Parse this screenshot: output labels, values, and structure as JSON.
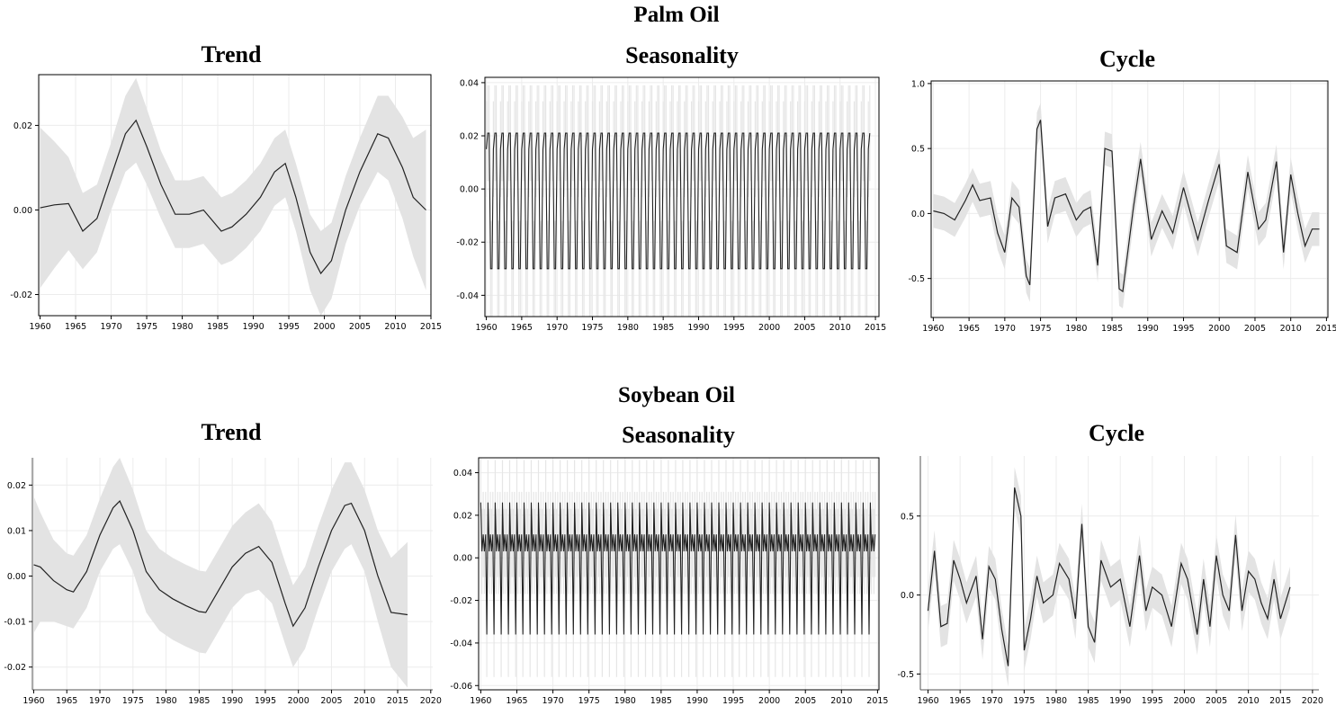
{
  "sections": [
    {
      "title": "Palm Oil"
    },
    {
      "title": "Soybean Oil"
    }
  ],
  "chart_data": [
    {
      "name": "palm-trend",
      "type": "area",
      "title": "Trend",
      "xlim": [
        1959.8,
        2015.0
      ],
      "ylim": [
        -0.025,
        0.032
      ],
      "xticks": [
        1960,
        1965,
        1970,
        1975,
        1980,
        1985,
        1990,
        1995,
        2000,
        2005,
        2010,
        2015
      ],
      "yticks": [
        -0.02,
        0.0,
        0.02
      ],
      "ytick_labels": [
        "-0.02",
        "0.00",
        "0.02"
      ],
      "x": [
        1960,
        1962,
        1964,
        1966,
        1968,
        1970,
        1972,
        1973.5,
        1975,
        1977,
        1979,
        1981,
        1983,
        1984,
        1985.5,
        1987,
        1989,
        1991,
        1993,
        1994.5,
        1996,
        1998,
        1999.5,
        2001,
        2003,
        2005,
        2007.5,
        2009,
        2011,
        2012.5,
        2014.3
      ],
      "y": [
        0.0005,
        0.0012,
        0.0015,
        -0.005,
        -0.002,
        0.008,
        0.018,
        0.0212,
        0.015,
        0.006,
        -0.001,
        -0.001,
        0.0,
        -0.002,
        -0.005,
        -0.004,
        -0.001,
        0.003,
        0.009,
        0.011,
        0.003,
        -0.01,
        -0.015,
        -0.012,
        0.0,
        0.009,
        0.018,
        0.017,
        0.01,
        0.003,
        0.0
      ],
      "band_half_width": [
        0.019,
        0.015,
        0.011,
        0.009,
        0.008,
        0.008,
        0.009,
        0.01,
        0.009,
        0.008,
        0.008,
        0.008,
        0.008,
        0.008,
        0.008,
        0.008,
        0.008,
        0.008,
        0.008,
        0.008,
        0.008,
        0.009,
        0.01,
        0.009,
        0.008,
        0.008,
        0.009,
        0.01,
        0.012,
        0.014,
        0.019
      ],
      "grid": true
    },
    {
      "name": "palm-seasonality",
      "type": "line",
      "title": "Seasonality",
      "xlim": [
        1959.8,
        2015.5
      ],
      "ylim": [
        -0.048,
        0.042
      ],
      "xticks": [
        1960,
        1965,
        1970,
        1975,
        1980,
        1985,
        1990,
        1995,
        2000,
        2005,
        2010,
        2015
      ],
      "yticks": [
        -0.04,
        -0.02,
        0.0,
        0.02,
        0.04
      ],
      "ytick_labels": [
        "-0.04",
        "-0.02",
        "0.00",
        "0.02",
        "0.04"
      ],
      "x_start": 1960,
      "x_end": 2014.3,
      "period_years": 1,
      "cycle_values": [
        0.015,
        0.021,
        0.021,
        -0.03,
        -0.03
      ],
      "band_half_width": 0.018,
      "grid": true
    },
    {
      "name": "palm-cycle",
      "type": "line",
      "title": "Cycle",
      "xlim": [
        1959.7,
        2015.2
      ],
      "ylim": [
        -0.8,
        1.02
      ],
      "xticks": [
        1960,
        1965,
        1970,
        1975,
        1980,
        1985,
        1990,
        1995,
        2000,
        2005,
        2010,
        2015
      ],
      "yticks": [
        -0.5,
        0.0,
        0.5,
        1.0
      ],
      "ytick_labels": [
        "-0.5",
        "0.0",
        "0.5",
        "1.0"
      ],
      "x": [
        1960,
        1961.5,
        1963,
        1964.5,
        1965.5,
        1966.5,
        1968,
        1969,
        1970,
        1971,
        1972,
        1973,
        1973.5,
        1974.5,
        1975,
        1976,
        1977,
        1978.5,
        1980,
        1981,
        1982,
        1983,
        1984,
        1985,
        1986,
        1986.5,
        1988,
        1989,
        1990.5,
        1992,
        1993.5,
        1995,
        1996,
        1997,
        1998.5,
        2000,
        2001,
        2002.5,
        2004,
        2005.5,
        2006.5,
        2008,
        2009,
        2010,
        2011,
        2012,
        2013,
        2014
      ],
      "y": [
        0.02,
        0.0,
        -0.05,
        0.1,
        0.22,
        0.1,
        0.12,
        -0.15,
        -0.3,
        0.12,
        0.05,
        -0.48,
        -0.55,
        0.65,
        0.72,
        -0.1,
        0.12,
        0.15,
        -0.05,
        0.02,
        0.05,
        -0.4,
        0.5,
        0.48,
        -0.58,
        -0.6,
        0.05,
        0.42,
        -0.2,
        0.02,
        -0.15,
        0.2,
        0.0,
        -0.2,
        0.1,
        0.38,
        -0.25,
        -0.3,
        0.32,
        -0.12,
        -0.05,
        0.4,
        -0.3,
        0.3,
        0.0,
        -0.25,
        -0.12,
        -0.12
      ],
      "band_half_width": 0.13,
      "grid": true
    },
    {
      "name": "soy-trend",
      "type": "area",
      "title": "Trend",
      "xlim": [
        1959.8,
        2020.3
      ],
      "ylim": [
        -0.025,
        0.026
      ],
      "xticks": [
        1960,
        1965,
        1970,
        1975,
        1980,
        1985,
        1990,
        1995,
        2000,
        2005,
        2010,
        2015,
        2020
      ],
      "yticks": [
        -0.02,
        -0.01,
        0.0,
        0.01,
        0.02
      ],
      "ytick_labels": [
        "-0.02",
        "-0.01",
        "0.00",
        "0.01",
        "0.02"
      ],
      "x": [
        1960,
        1961,
        1963,
        1965,
        1966,
        1968,
        1970,
        1972,
        1973,
        1975,
        1977,
        1979,
        1981,
        1983,
        1985,
        1986,
        1988,
        1990,
        1992,
        1994,
        1996,
        1998,
        1999.2,
        2001,
        2003,
        2005,
        2007,
        2008,
        2010,
        2012,
        2014,
        2016.5
      ],
      "y": [
        0.0025,
        0.002,
        -0.001,
        -0.003,
        -0.0035,
        0.001,
        0.009,
        0.015,
        0.0165,
        0.01,
        0.001,
        -0.003,
        -0.005,
        -0.0065,
        -0.0078,
        -0.008,
        -0.003,
        0.002,
        0.005,
        0.0065,
        0.003,
        -0.006,
        -0.011,
        -0.007,
        0.002,
        0.01,
        0.0155,
        0.016,
        0.01,
        0.0,
        -0.008,
        -0.0085
      ],
      "band_half_width": [
        0.015,
        0.012,
        0.009,
        0.008,
        0.008,
        0.008,
        0.008,
        0.009,
        0.0095,
        0.009,
        0.009,
        0.009,
        0.009,
        0.009,
        0.009,
        0.009,
        0.009,
        0.009,
        0.009,
        0.0095,
        0.009,
        0.009,
        0.009,
        0.009,
        0.009,
        0.009,
        0.0095,
        0.009,
        0.009,
        0.01,
        0.012,
        0.016
      ],
      "grid": true
    },
    {
      "name": "soy-seasonality",
      "type": "line",
      "title": "Seasonality",
      "xlim": [
        1959.7,
        2015.2
      ],
      "ylim": [
        -0.062,
        0.047
      ],
      "xticks": [
        1960,
        1965,
        1970,
        1975,
        1980,
        1985,
        1990,
        1995,
        2000,
        2005,
        2010,
        2015
      ],
      "yticks": [
        -0.06,
        -0.04,
        -0.02,
        0.0,
        0.02,
        0.04
      ],
      "ytick_labels": [
        "-0.06",
        "-0.04",
        "-0.02",
        "0.00",
        "0.02",
        "0.04"
      ],
      "x_start": 1960,
      "x_end": 2014.8,
      "period_years": 1,
      "cycle_values": [
        0.026,
        0.003,
        0.011,
        0.003,
        0.011,
        -0.036
      ],
      "band_half_width": 0.02,
      "grid": true
    },
    {
      "name": "soy-cycle",
      "type": "line",
      "title": "Cycle",
      "xlim": [
        1958.8,
        2021.0
      ],
      "ylim": [
        -0.6,
        0.88
      ],
      "xticks": [
        1960,
        1965,
        1970,
        1975,
        1980,
        1985,
        1990,
        1995,
        2000,
        2005,
        2010,
        2015,
        2020
      ],
      "yticks": [
        -0.5,
        0.0,
        0.5
      ],
      "ytick_labels": [
        "-0.5",
        "0.0",
        "0.5"
      ],
      "x": [
        1960,
        1961,
        1962,
        1963,
        1964,
        1965,
        1966,
        1967.5,
        1968.5,
        1969.5,
        1970.5,
        1971.5,
        1972.5,
        1973.5,
        1974.5,
        1975,
        1976,
        1977,
        1978,
        1979.5,
        1980.5,
        1982,
        1983,
        1984,
        1985,
        1986,
        1987,
        1988.5,
        1990,
        1991.5,
        1993,
        1994,
        1995,
        1996.5,
        1998,
        1999.5,
        2000.5,
        2002,
        2003,
        2004,
        2005,
        2006,
        2007,
        2008,
        2009,
        2010,
        2011,
        2012,
        2013,
        2014,
        2015,
        2016.5
      ],
      "y": [
        -0.1,
        0.28,
        -0.2,
        -0.18,
        0.22,
        0.1,
        -0.05,
        0.12,
        -0.28,
        0.18,
        0.1,
        -0.22,
        -0.45,
        0.68,
        0.5,
        -0.35,
        -0.15,
        0.12,
        -0.05,
        0.0,
        0.2,
        0.1,
        -0.15,
        0.45,
        -0.2,
        -0.3,
        0.22,
        0.05,
        0.1,
        -0.2,
        0.25,
        -0.1,
        0.05,
        0.0,
        -0.2,
        0.2,
        0.1,
        -0.25,
        0.1,
        -0.2,
        0.25,
        0.0,
        -0.1,
        0.38,
        -0.1,
        0.15,
        0.1,
        -0.05,
        -0.15,
        0.1,
        -0.15,
        0.05
      ],
      "band_half_width": 0.13,
      "grid": true
    }
  ]
}
